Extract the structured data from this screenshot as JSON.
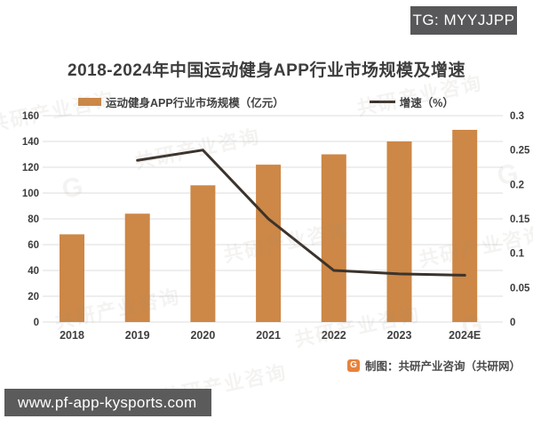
{
  "badge": {
    "text": "TG: MYYJJPP"
  },
  "url_bar": {
    "text": "www.pf-app-kysports.com"
  },
  "footer": {
    "logo_letter": "G",
    "credit": "制图：共研产业咨询（共研网）"
  },
  "watermark": {
    "text": "共研产业咨询",
    "logo_letter": "G"
  },
  "colors": {
    "bar": "#cd8746",
    "line": "#3b332c",
    "grid": "#dedede",
    "tick_text": "#3c3c3c",
    "badge_bg": "#58585a",
    "urlbar_bg": "#5b5b5b",
    "footer_logo_bg": "#e8823b"
  },
  "chart_data": {
    "type": "bar+line combo",
    "title": "2018-2024年中国运动健身APP行业市场规模及增速",
    "categories": [
      "2018",
      "2019",
      "2020",
      "2021",
      "2022",
      "2023",
      "2024E"
    ],
    "series": [
      {
        "name": "运动健身APP行业市场规模（亿元）",
        "type": "bar",
        "axis": "left",
        "color": "#cd8746",
        "values": [
          68,
          84,
          106,
          122,
          130,
          140,
          149
        ]
      },
      {
        "name": "增速（%）",
        "type": "line",
        "axis": "right",
        "color": "#3b332c",
        "values": [
          null,
          0.235,
          0.25,
          0.15,
          0.075,
          0.07,
          0.068
        ]
      }
    ],
    "left_axis": {
      "min": 0,
      "max": 160,
      "step": 20,
      "ticks": [
        "160",
        "140",
        "120",
        "100",
        "80",
        "60",
        "40",
        "20",
        "0"
      ]
    },
    "right_axis": {
      "min": 0,
      "max": 0.3,
      "step": 0.05,
      "ticks": [
        "0.3",
        "0.25",
        "0.2",
        "0.15",
        "0.1",
        "0.05",
        "0"
      ]
    },
    "grid": true,
    "legend_position": "top"
  }
}
